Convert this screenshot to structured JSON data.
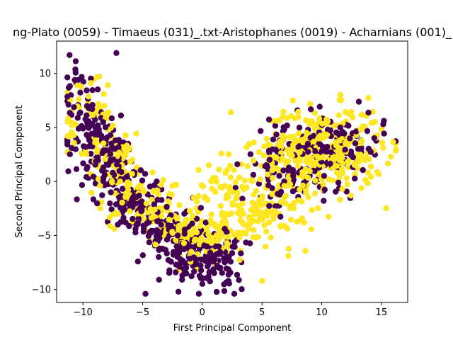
{
  "chart_data": {
    "type": "scatter",
    "title": "ng-Plato (0059) - Timaeus (031)_.txt-Aristophanes (0019) - Acharnians (001)_",
    "xlabel": "First Principal Component",
    "ylabel": "Second Principal Component",
    "xlim": [
      -12.2,
      17.2
    ],
    "ylim": [
      -11.2,
      13.0
    ],
    "xticks": [
      -10,
      -5,
      0,
      5,
      10,
      15
    ],
    "yticks": [
      -10,
      -5,
      0,
      5,
      10
    ],
    "grid": false,
    "legend": "none",
    "colors": {
      "class_0": "#440154",
      "class_1": "#fde725"
    },
    "clusters": [
      {
        "class": 0,
        "n": 520,
        "shape": "curve",
        "path": [
          [
            -10.5,
            9
          ],
          [
            -9.5,
            5
          ],
          [
            -7.5,
            1
          ],
          [
            -5.5,
            -2
          ],
          [
            -3.5,
            -4.5
          ],
          [
            -1.5,
            -6.5
          ],
          [
            0.5,
            -7.5
          ],
          [
            2,
            -7
          ]
        ],
        "spread": [
          1.1,
          1.5
        ]
      },
      {
        "class": 1,
        "n": 420,
        "shape": "curve",
        "path": [
          [
            -10,
            8
          ],
          [
            -8.5,
            4
          ],
          [
            -6.5,
            0
          ],
          [
            -4.5,
            -2.5
          ],
          [
            -2,
            -4.5
          ],
          [
            0.5,
            -5
          ],
          [
            3,
            -4
          ],
          [
            5.5,
            -2.5
          ]
        ],
        "spread": [
          1.2,
          1.4
        ]
      },
      {
        "class": 0,
        "n": 150,
        "shape": "blob",
        "center": [
          10.5,
          3
        ],
        "spread": [
          2.4,
          1.7
        ]
      },
      {
        "class": 0,
        "n": 60,
        "shape": "blob",
        "center": [
          6.5,
          0.5
        ],
        "spread": [
          1.6,
          1.8
        ]
      },
      {
        "class": 1,
        "n": 330,
        "shape": "blob",
        "center": [
          10,
          3
        ],
        "spread": [
          2.6,
          1.9
        ]
      },
      {
        "class": 1,
        "n": 70,
        "shape": "blob",
        "center": [
          6,
          -1.5
        ],
        "spread": [
          1.8,
          2.0
        ]
      },
      {
        "class": 1,
        "n": 30,
        "shape": "blob",
        "center": [
          1.5,
          0
        ],
        "spread": [
          1.0,
          0.9
        ]
      }
    ],
    "extra_points": [
      {
        "class": 1,
        "x": 5.0,
        "y": -9.2
      },
      {
        "class": 1,
        "x": 2.4,
        "y": 6.4
      },
      {
        "class": 0,
        "x": -7.2,
        "y": 11.9
      },
      {
        "class": 1,
        "x": 15.8,
        "y": 2.3
      },
      {
        "class": 0,
        "x": -2.0,
        "y": -10.2
      },
      {
        "class": 1,
        "x": 7.2,
        "y": -6.9
      }
    ]
  }
}
